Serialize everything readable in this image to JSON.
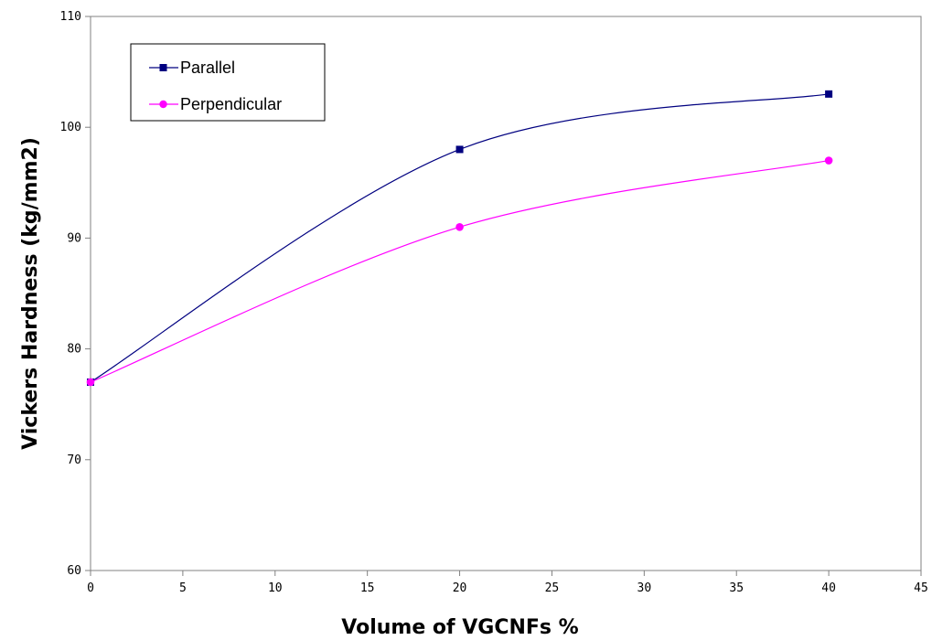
{
  "chart_data": {
    "type": "line",
    "title": "",
    "xlabel": "Volume of VGCNFs %",
    "ylabel": "Vickers Hardness (kg/mm2)",
    "xlim": [
      0,
      45
    ],
    "ylim": [
      60,
      110
    ],
    "xticks": [
      0,
      5,
      10,
      15,
      20,
      25,
      30,
      35,
      40,
      45
    ],
    "yticks": [
      60,
      70,
      80,
      90,
      100,
      110
    ],
    "grid": false,
    "legend_position": "top-left",
    "smooth": true,
    "series": [
      {
        "name": "Parallel",
        "color": "#000080",
        "marker": "square",
        "x": [
          0,
          20,
          40
        ],
        "y": [
          77,
          98,
          103
        ]
      },
      {
        "name": "Perpendicular",
        "color": "#FF00FF",
        "marker": "circle",
        "x": [
          0,
          20,
          40
        ],
        "y": [
          77,
          91,
          97
        ]
      }
    ]
  }
}
